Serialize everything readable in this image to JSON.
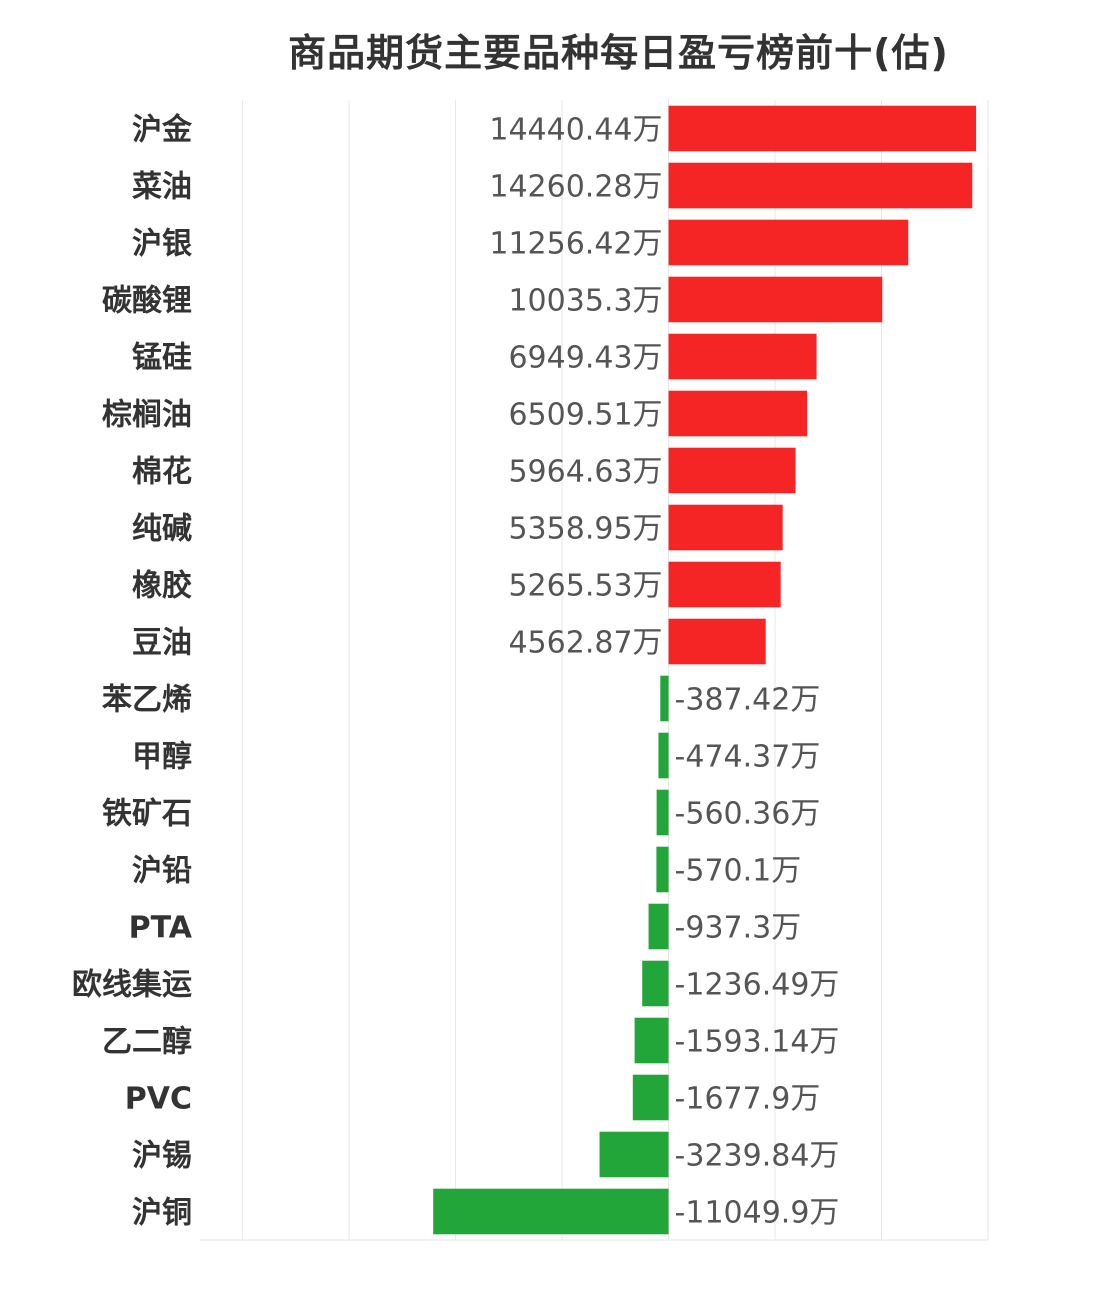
{
  "chart_data": {
    "type": "bar",
    "orientation": "horizontal",
    "title": "商品期货主要品种每日盈亏榜前十(估)",
    "unit_suffix": "万",
    "xlim": [
      -22000,
      15000
    ],
    "grid": true,
    "colors": {
      "positive": "#f52525",
      "negative": "#22a539"
    },
    "categories": [
      "沪金",
      "菜油",
      "沪银",
      "碳酸锂",
      "锰硅",
      "棕榈油",
      "棉花",
      "纯碱",
      "橡胶",
      "豆油",
      "苯乙烯",
      "甲醇",
      "铁矿石",
      "沪铅",
      "PTA",
      "欧线集运",
      "乙二醇",
      "PVC",
      "沪锡",
      "沪铜"
    ],
    "values": [
      14440.44,
      14260.28,
      11256.42,
      10035.3,
      6949.43,
      6509.51,
      5964.63,
      5358.95,
      5265.53,
      4562.87,
      -387.42,
      -474.37,
      -560.36,
      -570.1,
      -937.3,
      -1236.49,
      -1593.14,
      -1677.9,
      -3239.84,
      -11049.9
    ],
    "value_labels": [
      "14440.44万",
      "14260.28万",
      "11256.42万",
      "10035.3万",
      "6949.43万",
      "6509.51万",
      "5964.63万",
      "5358.95万",
      "5265.53万",
      "4562.87万",
      "-387.42万",
      "-474.37万",
      "-560.36万",
      "-570.1万",
      "-937.3万",
      "-1236.49万",
      "-1593.14万",
      "-1677.9万",
      "-3239.84万",
      "-11049.9万"
    ]
  }
}
